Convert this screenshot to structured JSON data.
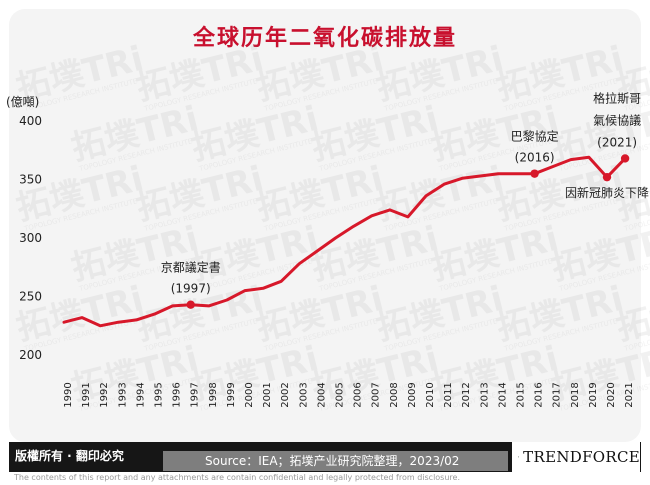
{
  "title": "全球历年二氧化碳排放量",
  "footer": {
    "rights": "版權所有 · 翻印必究",
    "source": "Source：IEA；拓墣产业研究院整理，2023/02",
    "logo": "TRENDFORCE",
    "disclaimer": "The contents of this report and any attachments are contain confidential and legally protected from disclosure."
  },
  "watermark": {
    "text": "拓墣TRi",
    "subtext": "TOPOLOGY RESEARCH INSTITUTE"
  },
  "colors": {
    "line": "#d7182a",
    "title": "#c8102e"
  },
  "chart_data": {
    "type": "line",
    "ylabel": "(億噸)",
    "ylim": [
      200,
      400
    ],
    "yticks": [
      200,
      250,
      300,
      350,
      400
    ],
    "x": [
      "1990",
      "1991",
      "1992",
      "1993",
      "1994",
      "1995",
      "1996",
      "1997",
      "1998",
      "1999",
      "2000",
      "2001",
      "2002",
      "2003",
      "2004",
      "2005",
      "2006",
      "2007",
      "2008",
      "2009",
      "2010",
      "2011",
      "2012",
      "2013",
      "2014",
      "2015",
      "2016",
      "2017",
      "2018",
      "2019",
      "2020",
      "2021"
    ],
    "series": [
      {
        "values": [
          228,
          232,
          225,
          228,
          230,
          235,
          242,
          243,
          242,
          247,
          255,
          257,
          263,
          278,
          289,
          300,
          310,
          319,
          324,
          318,
          336,
          346,
          351,
          353,
          355,
          355,
          355,
          361,
          367,
          369,
          352,
          368
        ]
      }
    ],
    "markers": [
      {
        "x": "1997",
        "lines": [
          "京都議定書",
          "(1997)"
        ]
      },
      {
        "x": "2016",
        "lines": [
          "巴黎協定",
          "(2016)"
        ]
      },
      {
        "x": "2020",
        "lines": [
          "因新冠肺炎下降"
        ]
      },
      {
        "x": "2021",
        "lines": [
          "格拉斯哥",
          "氣候協議",
          "(2021)"
        ]
      }
    ],
    "grid": false,
    "legend": "none"
  }
}
